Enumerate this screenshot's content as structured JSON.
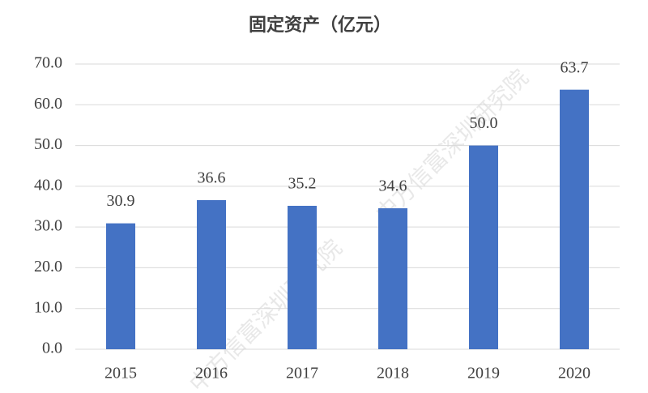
{
  "chart_data": {
    "type": "bar",
    "title": "固定资产（亿元）",
    "categories": [
      "2015",
      "2016",
      "2017",
      "2018",
      "2019",
      "2020"
    ],
    "values": [
      30.9,
      36.6,
      35.2,
      34.6,
      50.0,
      63.7
    ],
    "value_labels": [
      "30.9",
      "36.6",
      "35.2",
      "34.6",
      "50.0",
      "63.7"
    ],
    "color": "#4472c4",
    "ylim": [
      0,
      70
    ],
    "yticks": [
      {
        "value": 0,
        "label": "0.0"
      },
      {
        "value": 10,
        "label": "10.0"
      },
      {
        "value": 20,
        "label": "20.0"
      },
      {
        "value": 30,
        "label": "30.0"
      },
      {
        "value": 40,
        "label": "40.0"
      },
      {
        "value": 50,
        "label": "50.0"
      },
      {
        "value": 60,
        "label": "60.0"
      },
      {
        "value": 70,
        "label": "70.0"
      }
    ],
    "grid": true,
    "watermark": "中方信富深圳研究院"
  }
}
